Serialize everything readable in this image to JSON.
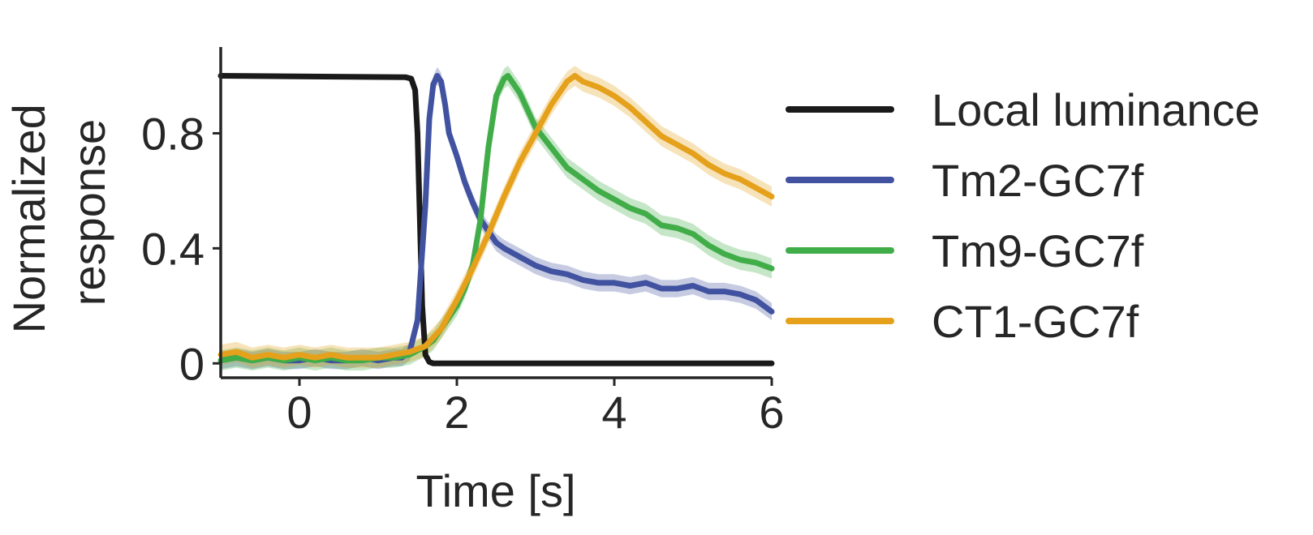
{
  "chart_data": {
    "type": "line",
    "title": "",
    "xlabel": "Time [s]",
    "ylabel": [
      "Normalized",
      "response"
    ],
    "xlim": [
      -1,
      6
    ],
    "ylim": [
      -0.05,
      1.1
    ],
    "xticks": [
      0,
      2,
      4,
      6
    ],
    "xtick_labels": [
      "0",
      "2",
      "4",
      "6"
    ],
    "yticks": [
      0,
      0.4,
      0.8
    ],
    "ytick_labels": [
      "0",
      "0.4",
      "0.8"
    ],
    "grid": false,
    "legend_position": "right",
    "series": [
      {
        "name": "Local luminance",
        "color": "#1a1a1a",
        "band": 0,
        "x": [
          -1,
          1.35,
          1.42,
          1.47,
          1.5,
          1.53,
          1.56,
          1.6,
          1.65,
          1.7,
          2,
          6
        ],
        "y": [
          1.0,
          0.995,
          0.99,
          0.95,
          0.8,
          0.5,
          0.2,
          0.03,
          0.005,
          0,
          0,
          0
        ]
      },
      {
        "name": "Tm2-GC7f",
        "color": "#4152a0",
        "band": 0.03,
        "x": [
          -1,
          -0.8,
          -0.6,
          -0.4,
          -0.2,
          0,
          0.2,
          0.4,
          0.6,
          0.8,
          1,
          1.2,
          1.3,
          1.4,
          1.5,
          1.6,
          1.65,
          1.7,
          1.75,
          1.8,
          1.85,
          1.9,
          2,
          2.1,
          2.2,
          2.3,
          2.4,
          2.5,
          2.6,
          2.8,
          3,
          3.2,
          3.4,
          3.6,
          3.8,
          4,
          4.2,
          4.4,
          4.6,
          4.8,
          5,
          5.2,
          5.4,
          5.6,
          5.8,
          6
        ],
        "y": [
          0.01,
          0.02,
          0.01,
          0.02,
          0.01,
          0.01,
          0.02,
          0.01,
          0.01,
          0.02,
          0.01,
          0.02,
          0.02,
          0.04,
          0.15,
          0.55,
          0.85,
          0.97,
          1.0,
          0.98,
          0.9,
          0.8,
          0.72,
          0.63,
          0.56,
          0.5,
          0.46,
          0.42,
          0.4,
          0.37,
          0.34,
          0.32,
          0.31,
          0.29,
          0.28,
          0.28,
          0.27,
          0.28,
          0.26,
          0.26,
          0.27,
          0.25,
          0.25,
          0.24,
          0.22,
          0.18
        ]
      },
      {
        "name": "Tm9-GC7f",
        "color": "#41ad49",
        "band": 0.035,
        "x": [
          -1,
          -0.8,
          -0.6,
          -0.4,
          -0.2,
          0,
          0.2,
          0.4,
          0.6,
          0.8,
          1,
          1.2,
          1.4,
          1.6,
          1.7,
          1.8,
          1.9,
          2,
          2.1,
          2.2,
          2.3,
          2.4,
          2.5,
          2.6,
          2.65,
          2.7,
          2.8,
          2.9,
          3,
          3.2,
          3.4,
          3.6,
          3.8,
          4,
          4.2,
          4.4,
          4.6,
          4.8,
          5,
          5.2,
          5.4,
          5.6,
          5.8,
          6
        ],
        "y": [
          0.01,
          0.02,
          0.01,
          0.02,
          0.01,
          0.02,
          0.01,
          0.02,
          0.01,
          0.01,
          0.02,
          0.02,
          0.03,
          0.06,
          0.08,
          0.12,
          0.16,
          0.2,
          0.26,
          0.34,
          0.5,
          0.75,
          0.93,
          0.99,
          1.0,
          0.98,
          0.94,
          0.88,
          0.82,
          0.75,
          0.68,
          0.64,
          0.6,
          0.57,
          0.54,
          0.52,
          0.48,
          0.47,
          0.45,
          0.41,
          0.38,
          0.36,
          0.35,
          0.33
        ]
      },
      {
        "name": "CT1-GC7f",
        "color": "#e5a11b",
        "band": 0.035,
        "x": [
          -1,
          -0.8,
          -0.6,
          -0.4,
          -0.2,
          0,
          0.2,
          0.4,
          0.6,
          0.8,
          1,
          1.2,
          1.4,
          1.6,
          1.8,
          2,
          2.2,
          2.4,
          2.6,
          2.8,
          3,
          3.2,
          3.4,
          3.5,
          3.6,
          3.8,
          4,
          4.2,
          4.4,
          4.6,
          4.8,
          5,
          5.2,
          5.4,
          5.6,
          5.8,
          6
        ],
        "y": [
          0.03,
          0.04,
          0.02,
          0.03,
          0.02,
          0.03,
          0.02,
          0.03,
          0.02,
          0.02,
          0.02,
          0.03,
          0.04,
          0.06,
          0.12,
          0.22,
          0.33,
          0.45,
          0.58,
          0.7,
          0.8,
          0.9,
          0.98,
          1.0,
          0.98,
          0.96,
          0.93,
          0.89,
          0.84,
          0.79,
          0.76,
          0.73,
          0.69,
          0.66,
          0.64,
          0.61,
          0.58
        ]
      }
    ]
  }
}
